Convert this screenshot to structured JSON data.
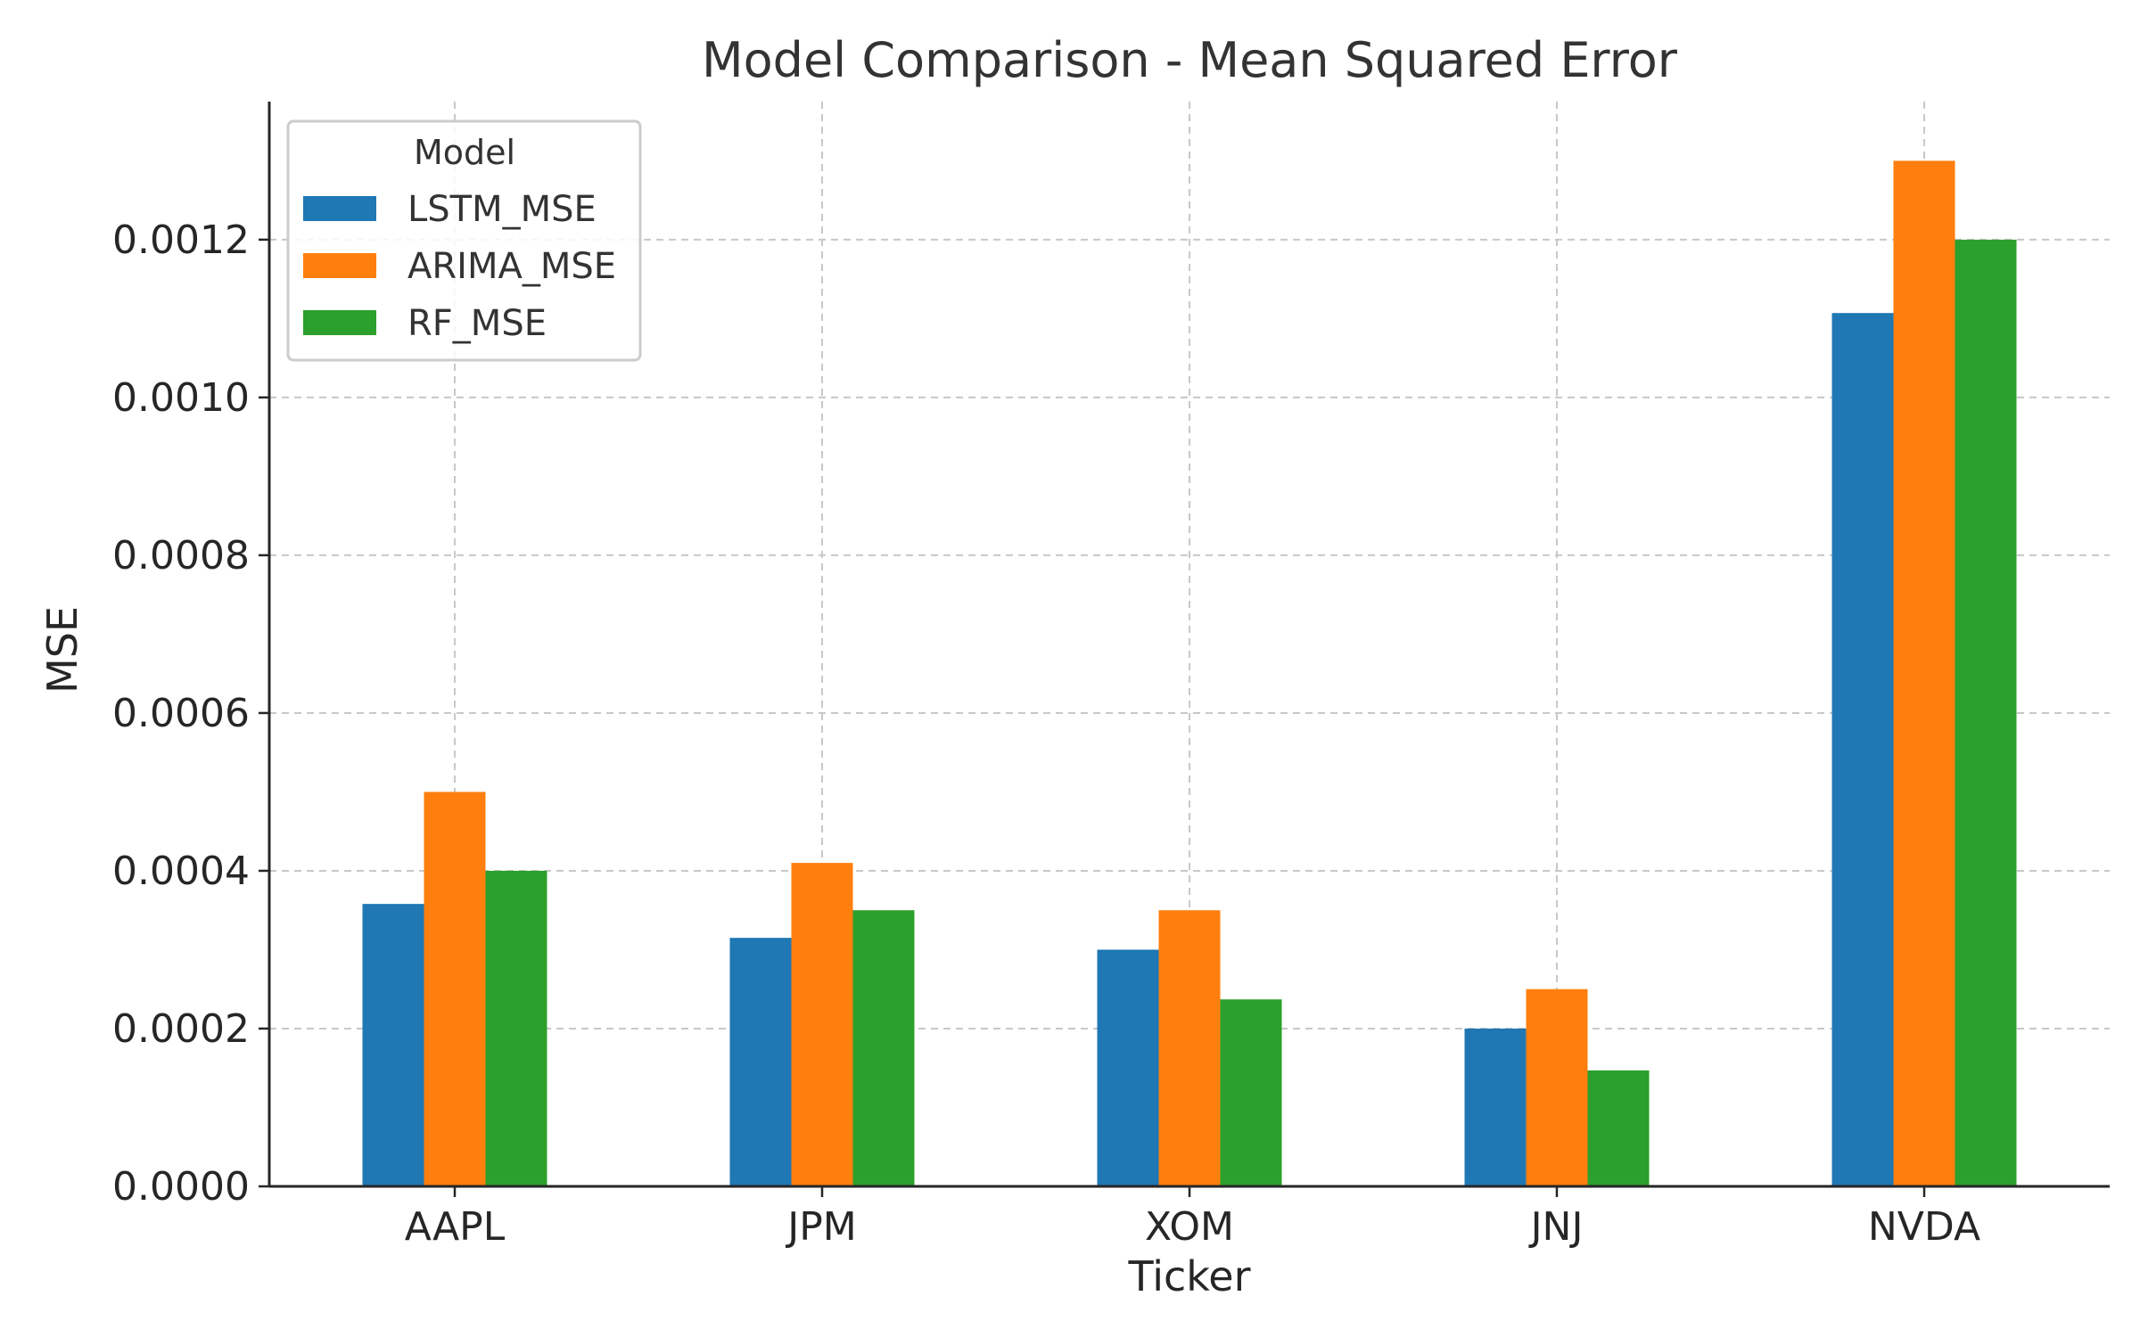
{
  "chart_data": {
    "type": "bar",
    "title": "Model Comparison - Mean Squared Error",
    "xlabel": "Ticker",
    "ylabel": "MSE",
    "categories": [
      "AAPL",
      "JPM",
      "XOM",
      "JNJ",
      "NVDA"
    ],
    "series": [
      {
        "name": "LSTM_MSE",
        "color": "#1f77b4",
        "values": [
          0.000358,
          0.000315,
          0.0003,
          0.0002,
          0.001107
        ]
      },
      {
        "name": "ARIMA_MSE",
        "color": "#ff7f0e",
        "values": [
          0.0005,
          0.00041,
          0.00035,
          0.00025,
          0.0013
        ]
      },
      {
        "name": "RF_MSE",
        "color": "#2ca02c",
        "values": [
          0.0004,
          0.00035,
          0.000237,
          0.000147,
          0.0012
        ]
      }
    ],
    "ylim": [
      0,
      0.001375
    ],
    "yticks": [
      "0.0000",
      "0.0002",
      "0.0004",
      "0.0006",
      "0.0008",
      "0.0010",
      "0.0012"
    ],
    "ytick_values": [
      0,
      0.0002,
      0.0004,
      0.0006,
      0.0008,
      0.001,
      0.0012
    ],
    "grid": true,
    "legend": {
      "title": "Model",
      "placement": "top-left"
    }
  }
}
